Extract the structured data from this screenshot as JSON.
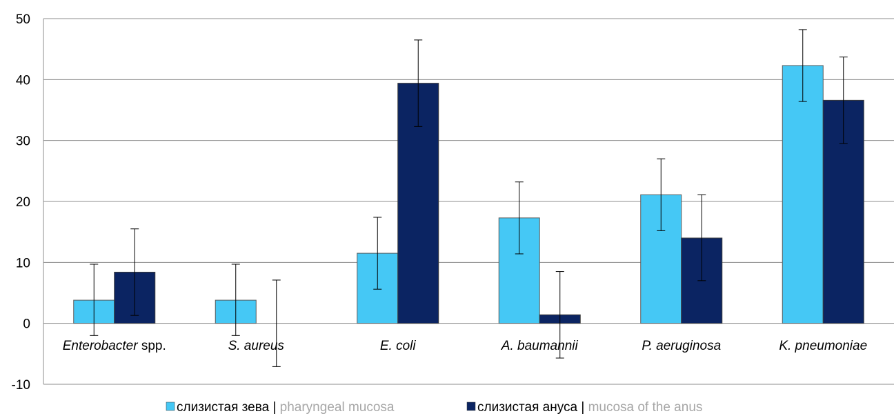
{
  "chart_data": {
    "type": "bar",
    "categories": [
      {
        "italic": "Enterobacter",
        "plain": " spp."
      },
      {
        "italic": "S. aureus",
        "plain": ""
      },
      {
        "italic": "E. coli",
        "plain": ""
      },
      {
        "italic": "A. baumannii",
        "plain": ""
      },
      {
        "italic": "P. aeruginosa",
        "plain": ""
      },
      {
        "italic": "K. pneumoniae",
        "plain": ""
      }
    ],
    "series": [
      {
        "name_primary": "слизистая зева",
        "name_secondary": "pharyngeal mucosa",
        "color": "#45C8F5",
        "values": [
          3.8,
          3.8,
          11.5,
          17.3,
          21.1,
          42.3
        ],
        "err_low": [
          -2.0,
          -2.0,
          5.6,
          11.4,
          15.2,
          36.4
        ],
        "err_high": [
          9.7,
          9.7,
          17.4,
          23.2,
          27.0,
          48.2
        ]
      },
      {
        "name_primary": "слизистая ануса",
        "name_secondary": "mucosa of the anus",
        "color": "#0B2462",
        "values": [
          8.4,
          0,
          39.4,
          1.4,
          14.0,
          36.6
        ],
        "err_low": [
          1.3,
          -7.1,
          32.3,
          -5.7,
          7.0,
          29.5
        ],
        "err_high": [
          15.5,
          7.1,
          46.5,
          8.5,
          21.1,
          43.7
        ]
      }
    ],
    "yticks": [
      "-10",
      "0",
      "10",
      "20",
      "30",
      "40",
      "50"
    ],
    "ylim": [
      -10,
      50
    ],
    "grid": true,
    "legend_position": "bottom",
    "legend_separator": " | ",
    "legend_secondary_color": "#A6A6A6"
  }
}
